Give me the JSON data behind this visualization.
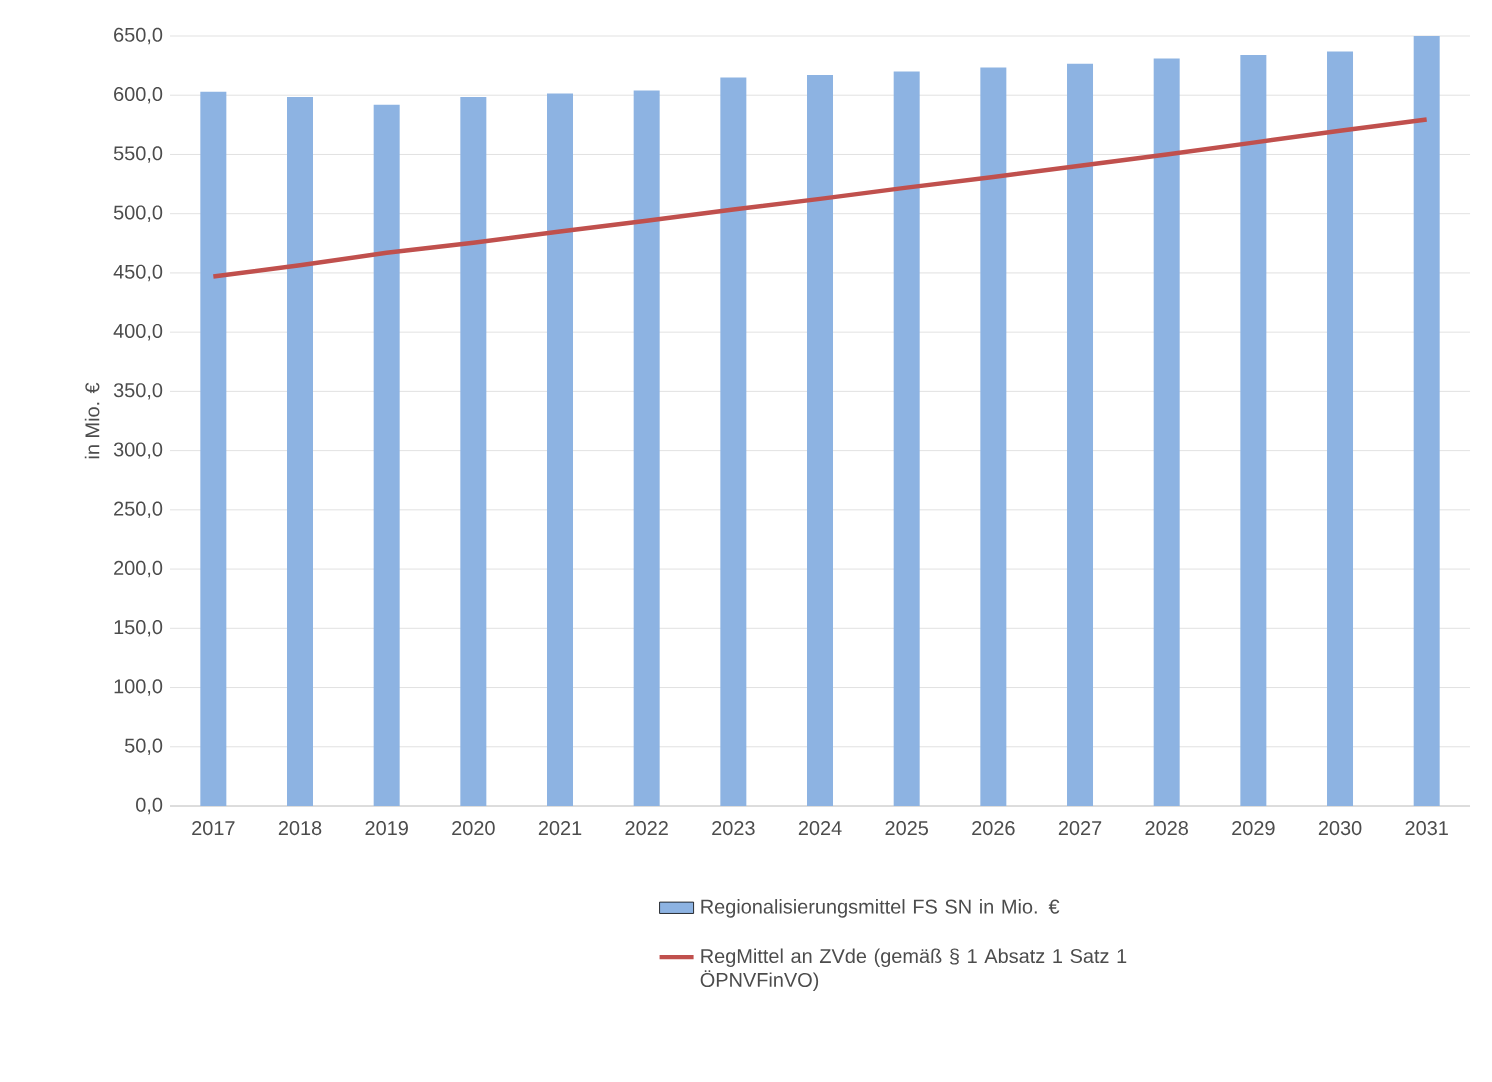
{
  "chart_data": {
    "type": "bar",
    "ylabel": "in Mio. €",
    "categories": [
      "2017",
      "2018",
      "2019",
      "2020",
      "2021",
      "2022",
      "2023",
      "2024",
      "2025",
      "2026",
      "2027",
      "2028",
      "2029",
      "2030",
      "2031"
    ],
    "series": [
      {
        "name": "Regionalisierungsmittel FS SN in Mio. €",
        "color": "#8db3e2",
        "values": [
          603,
          598.5,
          592,
          598.5,
          601.5,
          604,
          615,
          617,
          620,
          623.5,
          626.5,
          631,
          634,
          637,
          650
        ]
      },
      {
        "name": "RegMittel an ZVde (gemäß § 1 Absatz 1 Satz 1 ÖPNVFinVO)",
        "type": "line",
        "color": "#c0504d",
        "values": [
          447,
          456.5,
          467,
          475.5,
          485,
          494,
          503.5,
          512.5,
          522,
          531,
          540.5,
          550,
          560,
          570,
          579.5
        ]
      }
    ],
    "ylim": [
      0,
      650
    ],
    "yticks": [
      {
        "value": 0,
        "label": "0,0"
      },
      {
        "value": 50,
        "label": "50,0"
      },
      {
        "value": 100,
        "label": "100,0"
      },
      {
        "value": 150,
        "label": "150,0"
      },
      {
        "value": 200,
        "label": "200,0"
      },
      {
        "value": 250,
        "label": "250,0"
      },
      {
        "value": 300,
        "label": "300,0"
      },
      {
        "value": 350,
        "label": "350,0"
      },
      {
        "value": 400,
        "label": "400,0"
      },
      {
        "value": 450,
        "label": "450,0"
      },
      {
        "value": 500,
        "label": "500,0"
      },
      {
        "value": 550,
        "label": "550,0"
      },
      {
        "value": 600,
        "label": "600,0"
      },
      {
        "value": 650,
        "label": "650,0"
      }
    ],
    "grid": "y",
    "legend": "bottom"
  }
}
